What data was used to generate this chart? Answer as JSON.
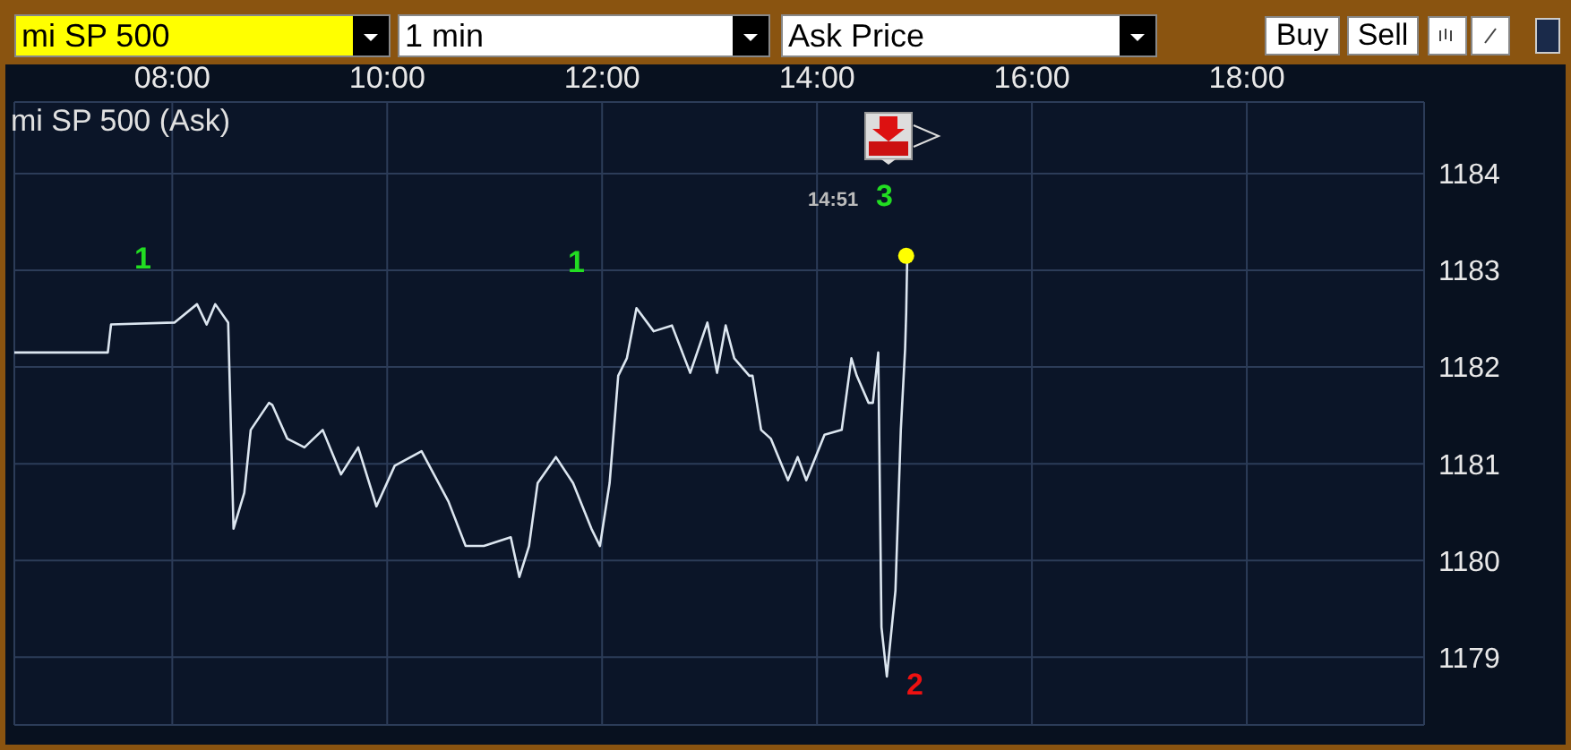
{
  "chart_data": {
    "type": "line",
    "title": "mi SP 500 (Ask)",
    "x": [
      6.53,
      7.4,
      7.43,
      8.02,
      8.23,
      8.32,
      8.4,
      8.52,
      8.57,
      8.67,
      8.73,
      8.9,
      8.93,
      9.07,
      9.23,
      9.4,
      9.57,
      9.73,
      9.9,
      10.07,
      10.32,
      10.57,
      10.73,
      10.9,
      11.15,
      11.23,
      11.32,
      11.4,
      11.57,
      11.73,
      11.9,
      11.98,
      12.07,
      12.15,
      12.23,
      12.32,
      12.48,
      12.65,
      12.82,
      12.98,
      13.07,
      13.15,
      13.23,
      13.37,
      13.4,
      13.48,
      13.57,
      13.73,
      13.82,
      13.9,
      14.07,
      14.23,
      14.32,
      14.37,
      14.48,
      14.52,
      14.57,
      14.6,
      14.65,
      14.73,
      14.78,
      14.82,
      14.83,
      14.84
    ],
    "series": [
      {
        "color": "#dce6f0",
        "values": [
          1182.15,
          1182.15,
          1182.44,
          1182.46,
          1182.65,
          1182.44,
          1182.65,
          1182.46,
          1180.33,
          1180.7,
          1181.35,
          1181.63,
          1181.61,
          1181.26,
          1181.17,
          1181.35,
          1180.89,
          1181.17,
          1180.56,
          1180.98,
          1181.13,
          1180.61,
          1180.15,
          1180.15,
          1180.24,
          1179.83,
          1180.15,
          1180.8,
          1181.07,
          1180.8,
          1180.33,
          1180.15,
          1180.8,
          1181.91,
          1182.09,
          1182.61,
          1182.37,
          1182.43,
          1181.94,
          1182.46,
          1181.94,
          1182.43,
          1182.09,
          1181.91,
          1181.91,
          1181.35,
          1181.26,
          1180.83,
          1181.07,
          1180.83,
          1181.3,
          1181.35,
          1182.09,
          1181.91,
          1181.63,
          1181.63,
          1182.15,
          1179.31,
          1178.8,
          1179.69,
          1181.35,
          1182.19,
          1182.56,
          1183.15
        ]
      },
      {
        "type": "scatter",
        "color": "#ffff00",
        "marker": "circle",
        "x": [
          14.83
        ],
        "values": [
          1183.15
        ]
      }
    ],
    "xlim": [
      6.53,
      19.65
    ],
    "xticks": [
      {
        "value": 8,
        "label": "08:00"
      },
      {
        "value": 10,
        "label": "10:00"
      },
      {
        "value": 12,
        "label": "12:00"
      },
      {
        "value": 14,
        "label": "14:00"
      },
      {
        "value": 16,
        "label": "16:00"
      },
      {
        "value": 18,
        "label": "18:00"
      }
    ],
    "ylim": [
      1178.3,
      1184.74
    ],
    "yticks": [
      1179,
      1180,
      1181,
      1182,
      1183,
      1184
    ],
    "grid": true,
    "marker": "none",
    "line_style": "solid",
    "annotations": [
      "mi SP 500",
      "1 min",
      "Ask Price",
      "Buy",
      "Sell",
      "1",
      "1",
      "2",
      "14:51",
      "3"
    ]
  }
}
